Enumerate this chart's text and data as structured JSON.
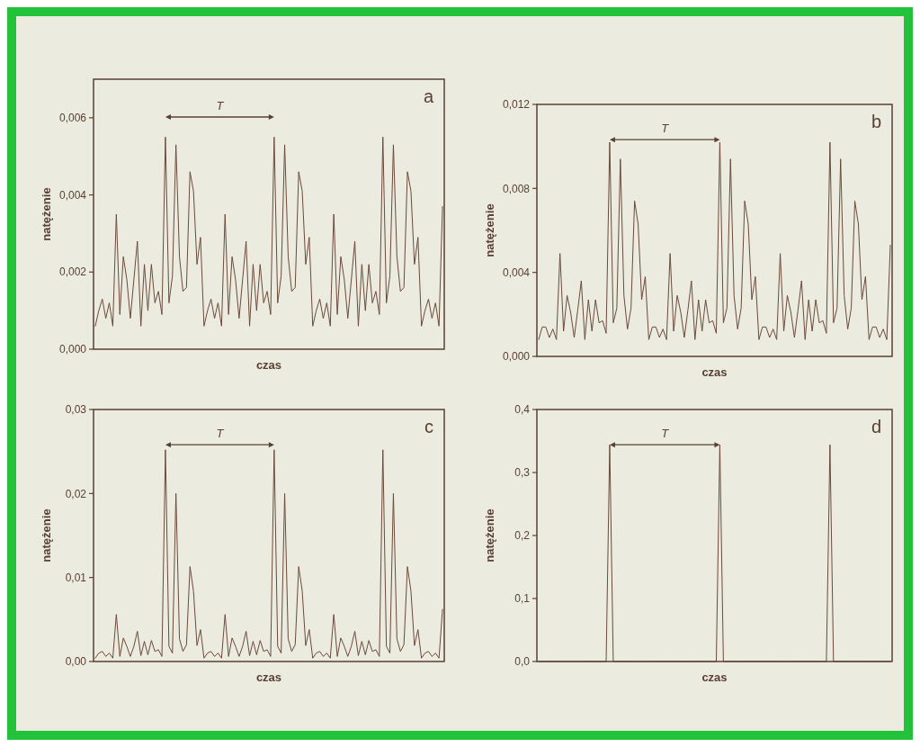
{
  "chart_data": [
    {
      "type": "line",
      "xlabel": "czas",
      "ylabel": "natężenie",
      "annotations": [
        "T",
        "a"
      ],
      "color": "#6b4a3a",
      "categories": [
        null,
        null,
        null,
        null,
        null,
        null,
        null,
        null,
        null,
        null,
        null,
        null,
        null,
        null,
        null,
        null,
        null,
        null,
        null,
        null,
        null,
        null,
        null,
        null,
        null,
        null,
        null,
        null,
        null,
        null,
        null,
        null,
        null,
        null,
        null,
        null,
        null,
        null,
        null,
        null,
        null,
        null,
        null,
        null,
        null,
        null,
        null,
        null,
        null,
        null,
        null,
        null,
        null,
        null,
        null,
        null,
        null,
        null,
        null,
        null,
        null,
        null,
        null,
        null,
        null,
        null,
        null,
        null,
        null,
        null,
        null,
        null,
        null,
        null,
        null,
        null,
        null,
        null,
        null,
        null,
        null,
        null,
        null,
        null,
        null,
        null,
        null,
        null,
        null,
        null,
        null,
        null,
        null,
        null,
        null,
        null,
        null,
        null,
        null,
        null
      ],
      "values": [
        0.0006,
        0.001,
        0.0013,
        0.0008,
        0.0012,
        0.0006,
        0.0035,
        0.0009,
        0.0024,
        0.0018,
        0.0008,
        0.0018,
        0.0028,
        0.0006,
        0.0022,
        0.001,
        0.0022,
        0.0012,
        0.0015,
        0.0009,
        0.0055,
        0.0012,
        0.0019,
        0.0053,
        0.0024,
        0.0015,
        0.0016,
        0.0046,
        0.0041,
        0.0022,
        0.0029,
        0.0006,
        0.001,
        0.0013,
        0.0008,
        0.0012,
        0.0006,
        0.0035,
        0.0009,
        0.0024,
        0.0018,
        0.0008,
        0.0018,
        0.0028,
        0.0006,
        0.0022,
        0.001,
        0.0022,
        0.0012,
        0.0015,
        0.0009,
        0.0055,
        0.0012,
        0.0019,
        0.0053,
        0.0024,
        0.0015,
        0.0016,
        0.0046,
        0.0041,
        0.0022,
        0.0029,
        0.0006,
        0.001,
        0.0013,
        0.0008,
        0.0012,
        0.0006,
        0.0035,
        0.0009,
        0.0024,
        0.0018,
        0.0008,
        0.0018,
        0.0028,
        0.0006,
        0.0022,
        0.001,
        0.0022,
        0.0012,
        0.0015,
        0.0009,
        0.0055,
        0.0012,
        0.0019,
        0.0053,
        0.0024,
        0.0015,
        0.0016,
        0.0046,
        0.0041,
        0.0022,
        0.0029,
        0.0006,
        0.001,
        0.0013,
        0.0008,
        0.0012,
        0.0006,
        0.0037
      ],
      "ylim": [
        0,
        0.007
      ],
      "yticks": [
        {
          "value": 0,
          "label": "0,000"
        },
        {
          "value": 0.002,
          "label": "0,002"
        },
        {
          "value": 0.004,
          "label": "0,004"
        },
        {
          "value": 0.006,
          "label": "0,006"
        }
      ]
    },
    {
      "type": "line",
      "xlabel": "czas",
      "ylabel": "natężenie",
      "annotations": [
        "T",
        "b"
      ],
      "color": "#6b4a3a",
      "categories": [
        null,
        null,
        null,
        null,
        null,
        null,
        null,
        null,
        null,
        null,
        null,
        null,
        null,
        null,
        null,
        null,
        null,
        null,
        null,
        null,
        null,
        null,
        null,
        null,
        null,
        null,
        null,
        null,
        null,
        null,
        null,
        null,
        null,
        null,
        null,
        null,
        null,
        null,
        null,
        null,
        null,
        null,
        null,
        null,
        null,
        null,
        null,
        null,
        null,
        null,
        null,
        null,
        null,
        null,
        null,
        null,
        null,
        null,
        null,
        null,
        null,
        null,
        null,
        null,
        null,
        null,
        null,
        null,
        null,
        null,
        null,
        null,
        null,
        null,
        null,
        null,
        null,
        null,
        null,
        null,
        null,
        null,
        null,
        null,
        null,
        null,
        null,
        null,
        null,
        null,
        null,
        null,
        null,
        null,
        null,
        null,
        null,
        null,
        null,
        null
      ],
      "values": [
        0.0008,
        0.0014,
        0.0014,
        0.0009,
        0.0013,
        0.0008,
        0.0049,
        0.0012,
        0.0029,
        0.0021,
        0.0009,
        0.0022,
        0.0036,
        0.0008,
        0.0027,
        0.0012,
        0.0027,
        0.0016,
        0.0017,
        0.0011,
        0.0102,
        0.0016,
        0.0023,
        0.0094,
        0.0029,
        0.0013,
        0.0023,
        0.0074,
        0.0063,
        0.0027,
        0.0038,
        0.0008,
        0.0014,
        0.0014,
        0.0009,
        0.0013,
        0.0008,
        0.0049,
        0.0012,
        0.0029,
        0.0021,
        0.0009,
        0.0022,
        0.0036,
        0.0008,
        0.0027,
        0.0012,
        0.0027,
        0.0016,
        0.0017,
        0.0011,
        0.0102,
        0.0016,
        0.0023,
        0.0094,
        0.0029,
        0.0013,
        0.0023,
        0.0074,
        0.0063,
        0.0027,
        0.0038,
        0.0008,
        0.0014,
        0.0014,
        0.0009,
        0.0013,
        0.0008,
        0.0049,
        0.0012,
        0.0029,
        0.0021,
        0.0009,
        0.0022,
        0.0036,
        0.0008,
        0.0027,
        0.0012,
        0.0027,
        0.0016,
        0.0017,
        0.0011,
        0.0102,
        0.0016,
        0.0023,
        0.0094,
        0.0029,
        0.0013,
        0.0023,
        0.0074,
        0.0063,
        0.0027,
        0.0038,
        0.0008,
        0.0014,
        0.0014,
        0.0009,
        0.0013,
        0.0008,
        0.0053
      ],
      "ylim": [
        0,
        0.012
      ],
      "yticks": [
        {
          "value": 0,
          "label": "0,000"
        },
        {
          "value": 0.004,
          "label": "0,004"
        },
        {
          "value": 0.008,
          "label": "0,008"
        },
        {
          "value": 0.012,
          "label": "0,012"
        }
      ]
    },
    {
      "type": "line",
      "xlabel": "czas",
      "ylabel": "natężenie",
      "annotations": [
        "T",
        "c"
      ],
      "color": "#6b4a3a",
      "categories": [
        null,
        null,
        null,
        null,
        null,
        null,
        null,
        null,
        null,
        null,
        null,
        null,
        null,
        null,
        null,
        null,
        null,
        null,
        null,
        null,
        null,
        null,
        null,
        null,
        null,
        null,
        null,
        null,
        null,
        null,
        null,
        null,
        null,
        null,
        null,
        null,
        null,
        null,
        null,
        null,
        null,
        null,
        null,
        null,
        null,
        null,
        null,
        null,
        null,
        null,
        null,
        null,
        null,
        null,
        null,
        null,
        null,
        null,
        null,
        null,
        null,
        null,
        null,
        null,
        null,
        null,
        null,
        null,
        null,
        null,
        null,
        null,
        null,
        null,
        null,
        null,
        null,
        null,
        null,
        null,
        null,
        null,
        null,
        null,
        null,
        null,
        null,
        null,
        null,
        null,
        null,
        null,
        null,
        null,
        null,
        null,
        null,
        null,
        null,
        null
      ],
      "values": [
        0.0004,
        0.001,
        0.0012,
        0.0006,
        0.001,
        0.0004,
        0.0056,
        0.0006,
        0.0028,
        0.0018,
        0.0006,
        0.0018,
        0.0036,
        0.0007,
        0.0024,
        0.0008,
        0.0025,
        0.0012,
        0.0014,
        0.0006,
        0.0252,
        0.0018,
        0.001,
        0.02,
        0.0027,
        0.0012,
        0.002,
        0.0113,
        0.0084,
        0.0019,
        0.0038,
        0.0004,
        0.001,
        0.0012,
        0.0006,
        0.001,
        0.0004,
        0.0056,
        0.0006,
        0.0028,
        0.0018,
        0.0006,
        0.0018,
        0.0036,
        0.0007,
        0.0024,
        0.0008,
        0.0025,
        0.0012,
        0.0014,
        0.0006,
        0.0252,
        0.0018,
        0.001,
        0.02,
        0.0027,
        0.0012,
        0.002,
        0.0113,
        0.0084,
        0.0019,
        0.0038,
        0.0004,
        0.001,
        0.0012,
        0.0006,
        0.001,
        0.0004,
        0.0056,
        0.0006,
        0.0028,
        0.0018,
        0.0006,
        0.0018,
        0.0036,
        0.0007,
        0.0024,
        0.0008,
        0.0025,
        0.0012,
        0.0014,
        0.0006,
        0.0252,
        0.0018,
        0.001,
        0.02,
        0.0027,
        0.0012,
        0.002,
        0.0113,
        0.0084,
        0.0019,
        0.0038,
        0.0004,
        0.001,
        0.0012,
        0.0006,
        0.001,
        0.0004,
        0.0062
      ],
      "ylim": [
        0,
        0.03
      ],
      "yticks": [
        {
          "value": 0,
          "label": "0,00"
        },
        {
          "value": 0.01,
          "label": "0,01"
        },
        {
          "value": 0.02,
          "label": "0,02"
        },
        {
          "value": 0.03,
          "label": "0,03"
        }
      ]
    },
    {
      "type": "line",
      "xlabel": "czas",
      "ylabel": "natężenie",
      "annotations": [
        "T",
        "d"
      ],
      "color": "#6b4a3a",
      "categories": [
        null,
        null,
        null,
        null,
        null,
        null,
        null,
        null,
        null,
        null,
        null,
        null,
        null,
        null,
        null,
        null,
        null,
        null,
        null,
        null,
        null,
        null,
        null,
        null,
        null,
        null,
        null,
        null,
        null,
        null,
        null,
        null,
        null,
        null,
        null,
        null,
        null,
        null,
        null,
        null,
        null,
        null,
        null,
        null,
        null,
        null,
        null,
        null,
        null,
        null,
        null,
        null,
        null,
        null,
        null,
        null,
        null,
        null,
        null,
        null,
        null,
        null,
        null,
        null,
        null,
        null,
        null,
        null,
        null,
        null,
        null,
        null,
        null,
        null,
        null,
        null,
        null,
        null,
        null,
        null,
        null,
        null,
        null,
        null,
        null,
        null,
        null,
        null,
        null,
        null,
        null,
        null,
        null,
        null,
        null,
        null,
        null,
        null,
        null,
        null
      ],
      "values": [
        0,
        0,
        0,
        0,
        0,
        0,
        0,
        0,
        0,
        0,
        0,
        0,
        0,
        0,
        0,
        0,
        0,
        0,
        0,
        0,
        0.344,
        0,
        0,
        0,
        0,
        0,
        0,
        0,
        0,
        0,
        0,
        0,
        0,
        0,
        0,
        0,
        0,
        0,
        0,
        0,
        0,
        0,
        0,
        0,
        0,
        0,
        0,
        0,
        0,
        0,
        0,
        0.344,
        0,
        0,
        0,
        0,
        0,
        0,
        0,
        0,
        0,
        0,
        0,
        0,
        0,
        0,
        0,
        0,
        0,
        0,
        0,
        0,
        0,
        0,
        0,
        0,
        0,
        0,
        0,
        0,
        0,
        0,
        0.344,
        0,
        0,
        0,
        0,
        0,
        0,
        0,
        0,
        0,
        0,
        0,
        0,
        0,
        0,
        0,
        0,
        0
      ],
      "ylim": [
        0,
        0.4
      ],
      "yticks": [
        {
          "value": 0,
          "label": "0,0"
        },
        {
          "value": 0.1,
          "label": "0,1"
        },
        {
          "value": 0.2,
          "label": "0,2"
        },
        {
          "value": 0.3,
          "label": "0,3"
        },
        {
          "value": 0.4,
          "label": "0,4"
        }
      ]
    }
  ]
}
